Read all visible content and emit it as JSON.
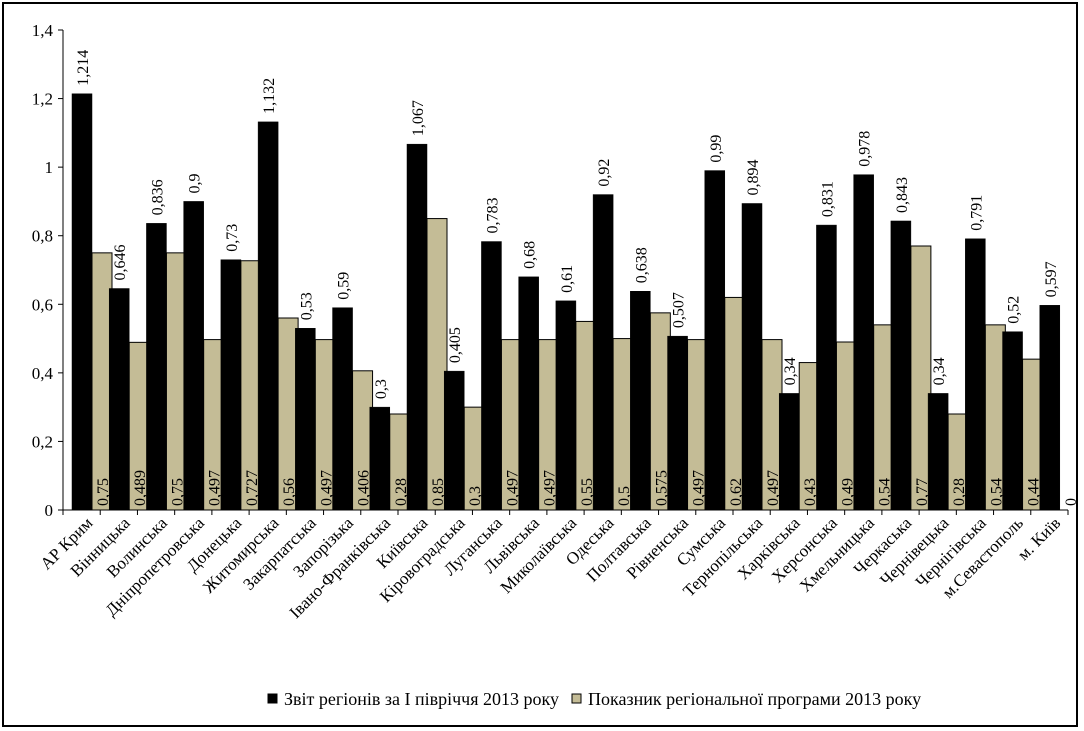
{
  "chart_data": {
    "type": "bar",
    "categories": [
      "АР Крим",
      "Вінницька",
      "Волинська",
      "Дніпропетровська",
      "Донецька",
      "Житомирська",
      "Закарпатська",
      "Запорізька",
      "Івано-Франківська",
      "Київська",
      "Кіровоградська",
      "Луганська",
      "Львівська",
      "Миколаївська",
      "Одеська",
      "Полтавська",
      "Рівненська",
      "Сумська",
      "Тернопільська",
      "Харківська",
      "Херсонська",
      "Хмельницька",
      "Черкаська",
      "Чернівецька",
      "Чернігівська",
      "м.Севастополь",
      "м. Київ"
    ],
    "series": [
      {
        "name": "Звіт регіонів за І півріччя 2013 року",
        "color": "#000000",
        "values": [
          1.214,
          0.646,
          0.836,
          0.9,
          0.73,
          1.132,
          0.53,
          0.59,
          0.3,
          1.067,
          0.405,
          0.783,
          0.68,
          0.61,
          0.92,
          0.638,
          0.507,
          0.99,
          0.894,
          0.34,
          0.831,
          0.978,
          0.843,
          0.34,
          0.791,
          0.52,
          0.597
        ],
        "labels": [
          "1,214",
          "0,646",
          "0,836",
          "0,9",
          "0,73",
          "1,132",
          "0,53",
          "0,59",
          "0,3",
          "1,067",
          "0,405",
          "0,783",
          "0,68",
          "0,61",
          "0,92",
          "0,638",
          "0,507",
          "0,99",
          "0,894",
          "0,34",
          "0,831",
          "0,978",
          "0,843",
          "0,34",
          "0,791",
          "0,52",
          "0,597"
        ]
      },
      {
        "name": "Показник регіональної програми 2013 року",
        "color": "#c4bc96",
        "values": [
          0.75,
          0.489,
          0.75,
          0.497,
          0.727,
          0.56,
          0.497,
          0.406,
          0.28,
          0.85,
          0.3,
          0.497,
          0.497,
          0.55,
          0.5,
          0.575,
          0.497,
          0.62,
          0.497,
          0.43,
          0.49,
          0.54,
          0.77,
          0.28,
          0.54,
          0.44,
          0
        ],
        "labels": [
          "0,75",
          "0,489",
          "0,75",
          "0,497",
          "0,727",
          "0,56",
          "0,497",
          "0,406",
          "0,28",
          "0,85",
          "0,3",
          "0,497",
          "0,497",
          "0,55",
          "0,5",
          "0,575",
          "0,497",
          "0,62",
          "0,497",
          "0,43",
          "0,49",
          "0,54",
          "0,77",
          "0,28",
          "0,54",
          "0,44",
          "0"
        ]
      }
    ],
    "ylim": [
      0,
      1.4
    ],
    "yticks": [
      0,
      0.2,
      0.4,
      0.6,
      0.8,
      1,
      1.2,
      1.4
    ],
    "ytick_labels": [
      "0",
      "0,2",
      "0,4",
      "0,6",
      "0,8",
      "1",
      "1,2",
      "1,4"
    ],
    "grid": false,
    "legend_position": "bottom"
  }
}
